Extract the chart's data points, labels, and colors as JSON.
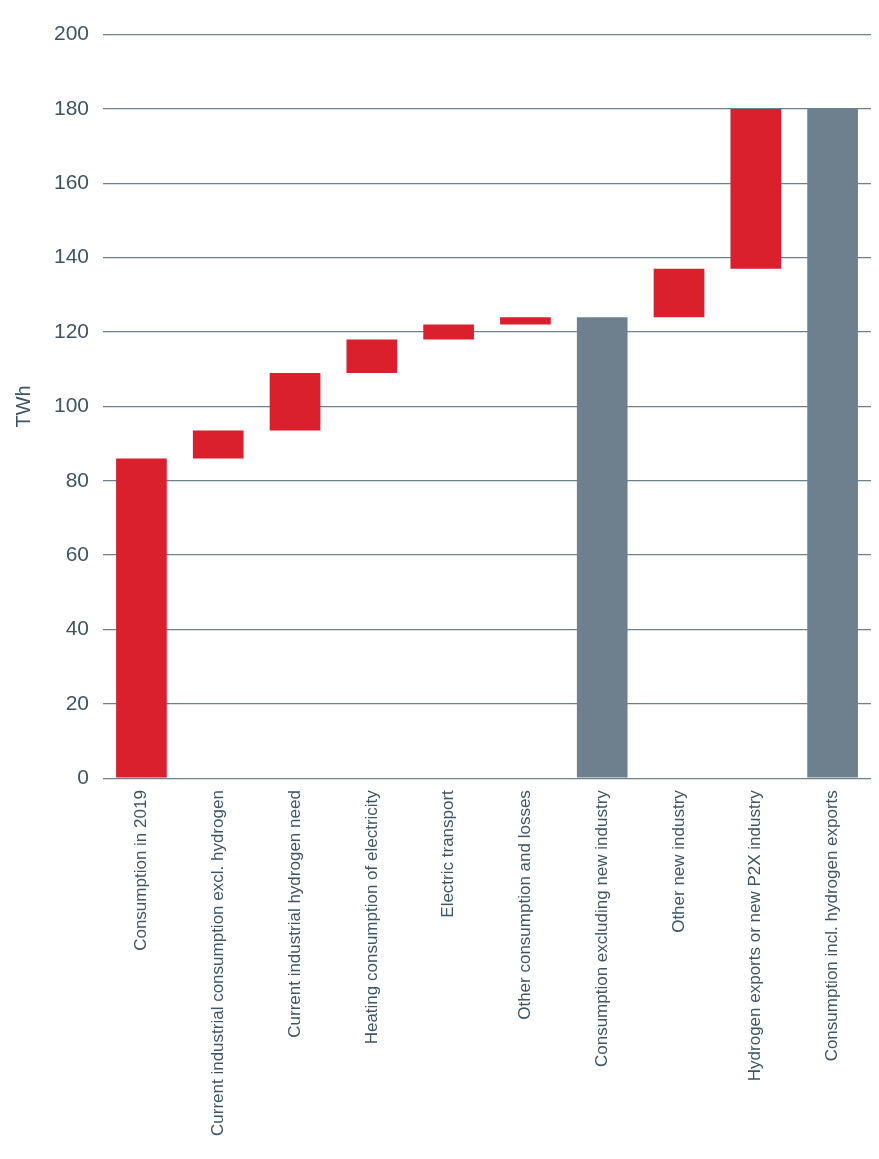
{
  "chart_data": {
    "type": "bar",
    "ylabel": "TWh",
    "categories": [
      "Consumption in 2019",
      "Current industrial consumption excl. hydrogen",
      "Current industrial hydrogen need",
      "Heating consumption of electricity",
      "Electric transport",
      "Other consumption and losses",
      "Consumption excluding new industry",
      "Other new industry",
      "Hydrogen exports or new P2X industry",
      "Consumption incl. hydrogen exports"
    ],
    "values": [
      86,
      7.5,
      15.5,
      9,
      4,
      2,
      124,
      13,
      43,
      180
    ],
    "base": [
      0,
      86,
      93.5,
      109,
      118,
      122,
      0,
      124,
      137,
      0
    ],
    "colors": [
      "#da1f2d",
      "#da1f2d",
      "#da1f2d",
      "#da1f2d",
      "#da1f2d",
      "#da1f2d",
      "#6e808e",
      "#da1f2d",
      "#da1f2d",
      "#6e808e"
    ],
    "ylim": [
      0,
      200
    ],
    "yticks": [
      0,
      20,
      40,
      60,
      80,
      100,
      120,
      140,
      160,
      180,
      200
    ],
    "grid": "y",
    "legend": false
  }
}
